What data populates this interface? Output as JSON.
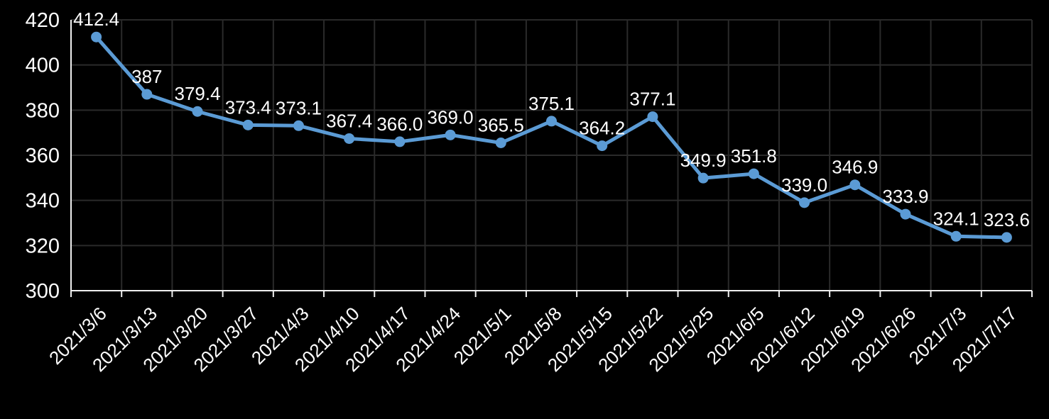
{
  "chart_data": {
    "type": "line",
    "title": "",
    "xlabel": "",
    "ylabel": "",
    "categories": [
      "2021/3/6",
      "2021/3/13",
      "2021/3/20",
      "2021/3/27",
      "2021/4/3",
      "2021/4/10",
      "2021/4/17",
      "2021/4/24",
      "2021/5/1",
      "2021/5/8",
      "2021/5/15",
      "2021/5/22",
      "2021/5/25",
      "2021/6/5",
      "2021/6/12",
      "2021/6/19",
      "2021/6/26",
      "2021/7/3",
      "2021/7/17"
    ],
    "values": [
      412.4,
      387,
      379.4,
      373.4,
      373.1,
      367.4,
      366.0,
      369.0,
      365.5,
      375.1,
      364.2,
      377.1,
      349.9,
      351.8,
      339.0,
      346.9,
      333.9,
      324.1,
      323.6
    ],
    "point_labels": [
      "412.4",
      "387",
      "379.4",
      "373.4",
      "373.1",
      "367.4",
      "366.0",
      "369.0",
      "365.5",
      "375.1",
      "364.2",
      "377.1",
      "349.9",
      "351.8",
      "339.0",
      "346.9",
      "333.9",
      "324.1",
      "323.6"
    ],
    "ylim": [
      300,
      420
    ],
    "ytick_step": 20,
    "ytick_labels": [
      "300",
      "320",
      "340",
      "360",
      "380",
      "400",
      "420"
    ],
    "grid": true,
    "legend_position": "none",
    "x_label_rotation_deg": -45,
    "colors": {
      "background": "#000000",
      "line": "#5B9BD5",
      "marker": "#5B9BD5",
      "gridline": "#2a2a2a",
      "axis": "#f0f0f0",
      "text": "#ffffff"
    }
  }
}
